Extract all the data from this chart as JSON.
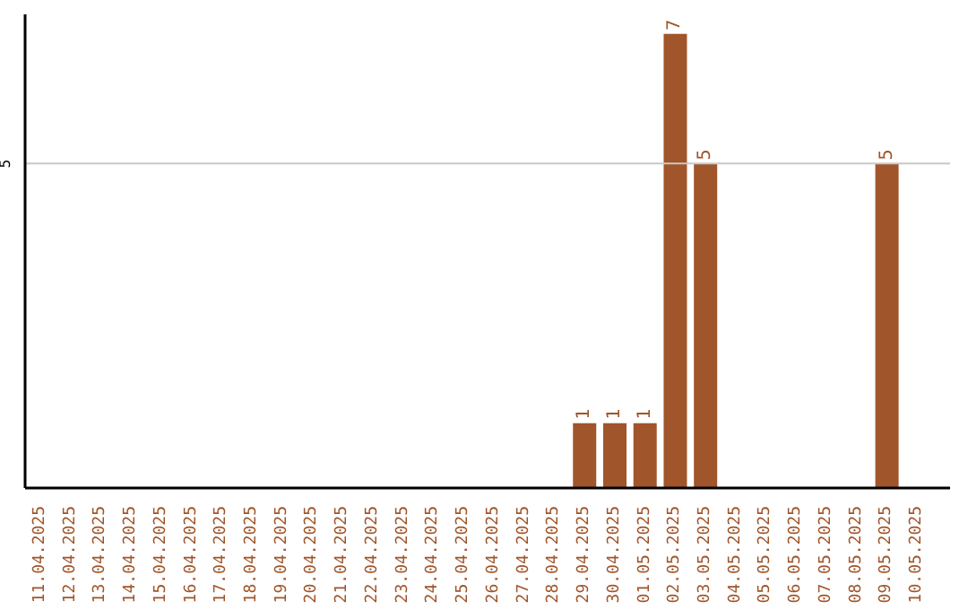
{
  "chart_data": {
    "type": "bar",
    "categories": [
      "11.04.2025",
      "12.04.2025",
      "13.04.2025",
      "14.04.2025",
      "15.04.2025",
      "16.04.2025",
      "17.04.2025",
      "18.04.2025",
      "19.04.2025",
      "20.04.2025",
      "21.04.2025",
      "22.04.2025",
      "23.04.2025",
      "24.04.2025",
      "25.04.2025",
      "26.04.2025",
      "27.04.2025",
      "28.04.2025",
      "29.04.2025",
      "30.04.2025",
      "01.05.2025",
      "02.05.2025",
      "03.05.2025",
      "04.05.2025",
      "05.05.2025",
      "06.05.2025",
      "07.05.2025",
      "08.05.2025",
      "09.05.2025",
      "10.05.2025"
    ],
    "values": [
      null,
      null,
      null,
      null,
      null,
      null,
      null,
      null,
      null,
      null,
      null,
      null,
      null,
      null,
      null,
      null,
      null,
      null,
      1,
      1,
      1,
      7,
      5,
      null,
      null,
      null,
      null,
      null,
      5,
      null
    ],
    "color": "#a0552a",
    "ylim": [
      0,
      7.3
    ],
    "yticks": [
      5
    ],
    "grid": "y",
    "data_labels": true
  }
}
